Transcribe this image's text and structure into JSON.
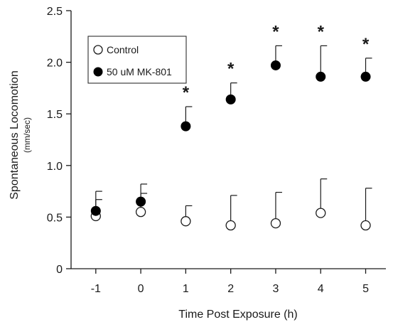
{
  "chart_data": {
    "type": "scatter",
    "xlabel": "Time Post Exposure (h)",
    "ylabel": "Spontaneous Locomotion",
    "ylabel_units": "(mm/sec)",
    "x": [
      -1,
      0,
      1,
      2,
      3,
      4,
      5
    ],
    "x_tick_labels": [
      "-1",
      "0",
      "1",
      "2",
      "3",
      "4",
      "5"
    ],
    "xlim": [
      -1.55,
      5.45
    ],
    "ylim": [
      0,
      2.5
    ],
    "y_ticks": [
      0,
      0.5,
      1.0,
      1.5,
      2.0,
      2.5
    ],
    "y_tick_labels": [
      "0",
      "0.5",
      "1.0",
      "1.5",
      "2.0",
      "2.5"
    ],
    "grid": false,
    "legend_placement": "top-left",
    "series": [
      {
        "name": "Control",
        "marker": "open-circle",
        "values": [
          0.51,
          0.55,
          0.46,
          0.42,
          0.44,
          0.54,
          0.42
        ],
        "error_upper": [
          0.75,
          0.82,
          0.61,
          0.71,
          0.74,
          0.87,
          0.78
        ]
      },
      {
        "name": "50 uM MK-801",
        "marker": "filled-circle",
        "values": [
          0.56,
          0.65,
          1.38,
          1.64,
          1.97,
          1.86,
          1.86
        ],
        "error_upper": [
          0.67,
          0.73,
          1.57,
          1.8,
          2.16,
          2.16,
          2.04
        ]
      }
    ],
    "significance_marker": "*",
    "significance_x": [
      1,
      2,
      3,
      4,
      5
    ],
    "colors": {
      "axis": "#1a1a1a",
      "filled_marker": "#000000",
      "open_marker_fill": "#ffffff"
    }
  }
}
